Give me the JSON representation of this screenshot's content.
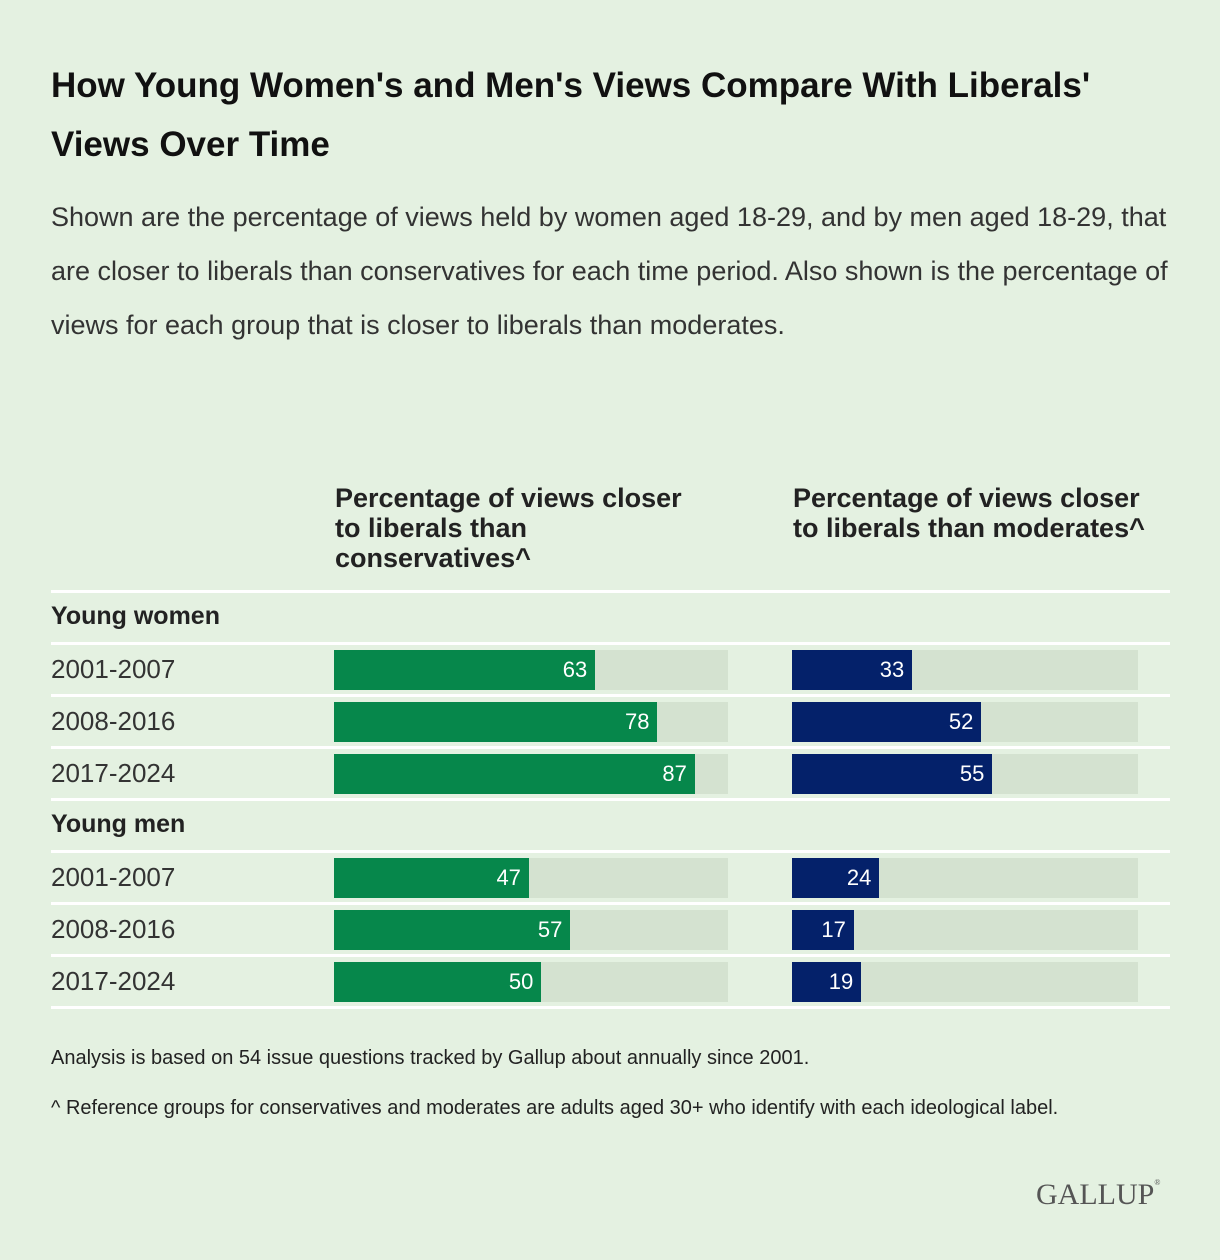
{
  "title": "How Young Women's and Men's Views Compare With Liberals' Views Over Time",
  "subtitle": "Shown are the percentage of views held by women aged 18-29, and by men aged 18-29, that are closer to liberals than conservatives for each time period. Also shown is the percentage of views for each group that is closer to liberals than moderates.",
  "notes": [
    "Analysis is based on 54 issue questions tracked by Gallup about annually since 2001.",
    "^ Reference groups for conservatives and moderates are adults aged 30+ who identify with each ideological label."
  ],
  "logo": "GALLUP",
  "colors": {
    "conservatives": "#06874b",
    "moderates": "#04216a",
    "track": "#d4e2d0",
    "background": "#e4f1e1"
  },
  "chart_data": {
    "type": "bar",
    "orientation": "horizontal",
    "columns": [
      {
        "label": "Percentage of views closer to liberals than conservatives^",
        "color": "#06874b"
      },
      {
        "label": "Percentage of views closer to liberals than moderates^",
        "color": "#04216a"
      }
    ],
    "groups": [
      {
        "name": "Young women",
        "rows": [
          {
            "period": "2001-2007",
            "values": [
              63,
              33
            ]
          },
          {
            "period": "2008-2016",
            "values": [
              78,
              52
            ]
          },
          {
            "period": "2017-2024",
            "values": [
              87,
              55
            ]
          }
        ]
      },
      {
        "name": "Young men",
        "rows": [
          {
            "period": "2001-2007",
            "values": [
              47,
              24
            ]
          },
          {
            "period": "2008-2016",
            "values": [
              57,
              17
            ]
          },
          {
            "period": "2017-2024",
            "values": [
              50,
              19
            ]
          }
        ]
      }
    ],
    "xlim": [
      0,
      95
    ],
    "data_labels": true
  }
}
